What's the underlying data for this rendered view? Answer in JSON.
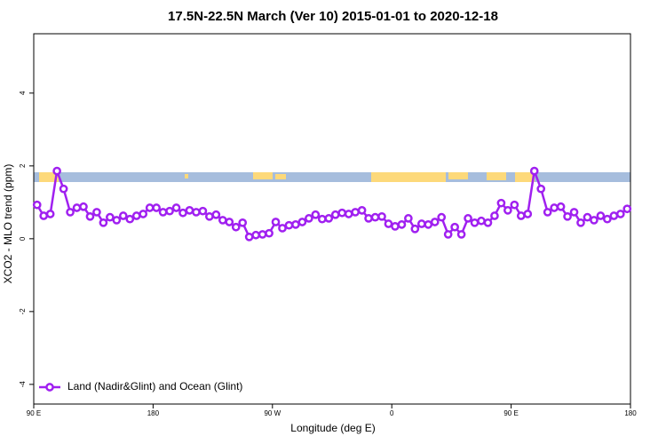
{
  "chart_data": {
    "type": "line",
    "title": "17.5N-22.5N March (Ver 10)   2015-01-01 to 2020-12-18",
    "x_label": "Longitude (deg E)",
    "y_label": "XCO2 - MLO trend (ppm)",
    "xlim": [
      90,
      540
    ],
    "ylim": [
      -4.54,
      5.63
    ],
    "xticks": [
      {
        "value": 90,
        "label": "90 E"
      },
      180,
      {
        "value": 270,
        "label": "90 W"
      },
      {
        "value": 360,
        "label": "0"
      },
      {
        "value": 450,
        "label": "90 E"
      },
      {
        "value": 540,
        "label": "180"
      }
    ],
    "yticks": [
      -4,
      -2,
      0,
      2,
      4
    ],
    "legend": "bottom-left",
    "x": [
      92.5,
      97.5,
      102.5,
      107.5,
      112.5,
      117.5,
      122.5,
      127.5,
      132.5,
      137.5,
      142.5,
      147.5,
      152.5,
      157.5,
      162.5,
      167.5,
      172.5,
      177.5,
      182.5,
      187.5,
      192.5,
      197.5,
      202.5,
      207.5,
      212.5,
      217.5,
      222.5,
      227.5,
      232.5,
      237.5,
      242.5,
      247.5,
      252.5,
      257.5,
      262.5,
      267.5,
      272.5,
      277.5,
      282.5,
      287.5,
      292.5,
      297.5,
      302.5,
      307.5,
      312.5,
      317.5,
      322.5,
      327.5,
      332.5,
      337.5,
      342.5,
      347.5,
      352.5,
      357.5,
      362.5,
      367.5,
      372.5,
      377.5,
      382.5,
      387.5,
      392.5,
      397.5,
      402.5,
      407.5,
      412.5,
      417.5,
      422.5,
      427.5,
      432.5,
      437.5,
      442.5,
      447.5,
      452.5,
      457.5,
      462.5,
      467.5,
      472.5,
      477.5,
      482.5,
      487.5,
      492.5,
      497.5,
      502.5,
      507.5,
      512.5,
      517.5,
      522.5,
      527.5,
      532.5,
      537.5
    ],
    "series": [
      {
        "name": "Land (Nadir&Glint) and Ocean (Glint)",
        "color": "#a020f0",
        "values": [
          0.93,
          0.63,
          0.68,
          1.86,
          1.37,
          0.73,
          0.85,
          0.88,
          0.61,
          0.73,
          0.44,
          0.59,
          0.51,
          0.63,
          0.54,
          0.63,
          0.68,
          0.85,
          0.85,
          0.73,
          0.76,
          0.85,
          0.71,
          0.78,
          0.73,
          0.76,
          0.61,
          0.66,
          0.51,
          0.46,
          0.32,
          0.44,
          0.05,
          0.1,
          0.12,
          0.15,
          0.46,
          0.29,
          0.37,
          0.39,
          0.46,
          0.56,
          0.66,
          0.54,
          0.56,
          0.66,
          0.71,
          0.68,
          0.73,
          0.78,
          0.56,
          0.59,
          0.61,
          0.41,
          0.34,
          0.39,
          0.56,
          0.27,
          0.41,
          0.39,
          0.46,
          0.59,
          0.12,
          0.32,
          0.12,
          0.56,
          0.44,
          0.49,
          0.44,
          0.63,
          0.98,
          0.78,
          0.93,
          0.63,
          0.68,
          1.86,
          1.37,
          0.73,
          0.85,
          0.88,
          0.61,
          0.73,
          0.44,
          0.59,
          0.51,
          0.63,
          0.54,
          0.63,
          0.68,
          0.82
        ]
      }
    ]
  }
}
